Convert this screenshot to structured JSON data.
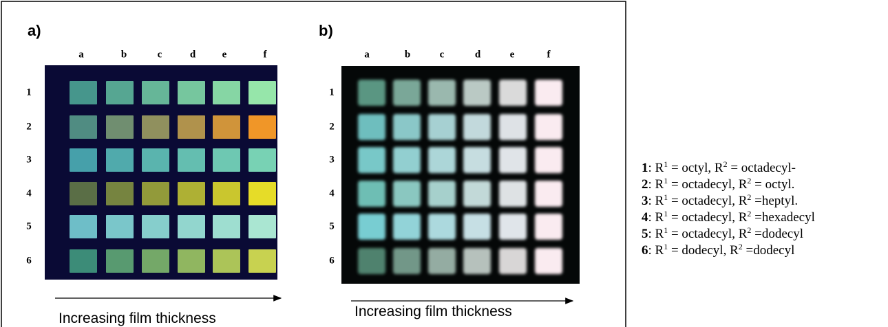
{
  "panels": [
    {
      "label": "a)",
      "columns": [
        "a",
        "b",
        "c",
        "d",
        "e",
        "f"
      ],
      "rows": [
        "1",
        "2",
        "3",
        "4",
        "5",
        "6"
      ],
      "caption": "Increasing film thickness"
    },
    {
      "label": "b)",
      "columns": [
        "a",
        "b",
        "c",
        "d",
        "e",
        "f"
      ],
      "rows": [
        "1",
        "2",
        "3",
        "4",
        "5",
        "6"
      ],
      "caption": "Increasing film thickness"
    }
  ],
  "legend": [
    {
      "parts": [
        "1",
        ": R",
        "1",
        " = octyl, R",
        "2",
        " = octadecyl-"
      ]
    },
    {
      "parts": [
        "2",
        ": R",
        "1",
        " = octadecyl, R",
        "2",
        " = octyl."
      ]
    },
    {
      "parts": [
        "3",
        ": R",
        "1",
        " = octadecyl, R",
        "2",
        " =heptyl."
      ]
    },
    {
      "parts": [
        "4",
        ": R",
        "1",
        " = octadecyl, R",
        "2",
        " =hexadecyl"
      ]
    },
    {
      "parts": [
        "5",
        ": R",
        "1",
        " = octadecyl, R",
        "2",
        " =dodecyl"
      ]
    },
    {
      "parts": [
        "6",
        ": R",
        "1",
        " = dodecyl, R",
        "2",
        " =dodecyl"
      ]
    }
  ]
}
